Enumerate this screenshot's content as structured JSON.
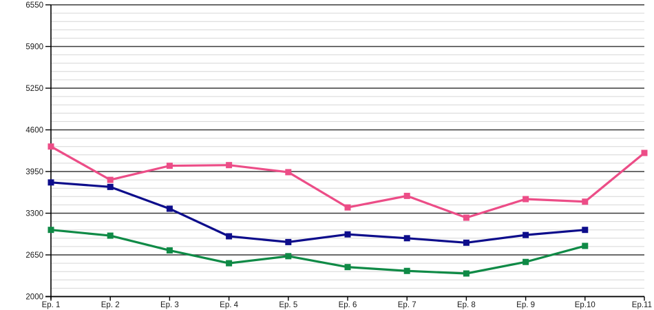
{
  "chart_data": {
    "type": "line",
    "title": "",
    "xlabel": "",
    "ylabel": "",
    "categories": [
      "Ep. 1",
      "Ep. 2",
      "Ep. 3",
      "Ep. 4",
      "Ep. 5",
      "Ep. 6",
      "Ep. 7",
      "Ep. 8",
      "Ep. 9",
      "Ep.10",
      "Ep.11"
    ],
    "series": [
      {
        "name": "pink-series",
        "color": "#EC4D87",
        "marker": "square",
        "values": [
          4340,
          3820,
          4040,
          4050,
          3940,
          3390,
          3570,
          3230,
          3520,
          3480,
          4240
        ]
      },
      {
        "name": "navy-series",
        "color": "#0D0D8B",
        "marker": "square",
        "values": [
          3780,
          3710,
          3370,
          2940,
          2850,
          2970,
          2910,
          2840,
          2960,
          3040,
          null
        ]
      },
      {
        "name": "green-series",
        "color": "#0F8A46",
        "marker": "square",
        "values": [
          3040,
          2950,
          2720,
          2520,
          2630,
          2460,
          2400,
          2360,
          2540,
          2790,
          null
        ]
      }
    ],
    "ylim": [
      2000,
      6550
    ],
    "y_major_step": 650,
    "y_minor_step": 130,
    "y_tick_labels": [
      "2000",
      "2650",
      "3300",
      "3950",
      "4600",
      "5250",
      "5900",
      "6550"
    ],
    "grid": "major-dark, minor-light",
    "legend": "none"
  },
  "colors": {
    "background": "#ffffff",
    "axis": "#000000",
    "major_grid": "#3a3a3a",
    "minor_grid": "#d6d6d6",
    "tick_text": "#1a1a1a"
  }
}
